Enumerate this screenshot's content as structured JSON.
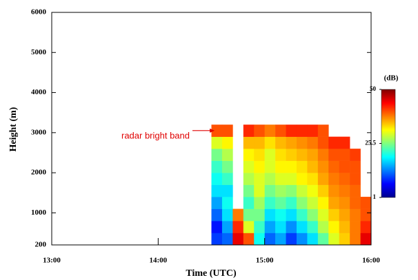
{
  "chart_data": {
    "type": "heatmap",
    "x_label": "Time (UTC)",
    "y_label": "Height (m)",
    "colorbar_label": "(dB)",
    "annotation": {
      "text": "radar bright band",
      "x": 14.53,
      "y": 3000
    },
    "xlim": [
      13,
      16
    ],
    "xticks": [
      {
        "value": 13,
        "label": "13:00"
      },
      {
        "value": 14,
        "label": "14:00"
      },
      {
        "value": 15,
        "label": "15:00"
      },
      {
        "value": 16,
        "label": "16:00"
      }
    ],
    "ylim": [
      200,
      6000
    ],
    "yticks": [
      200,
      1000,
      2000,
      3000,
      4000,
      5000,
      6000
    ],
    "zlim": [
      1,
      50
    ],
    "zticks": [
      1,
      25.5,
      50
    ],
    "x_bins": [
      14.5,
      14.6,
      14.7,
      14.8,
      14.9,
      15.0,
      15.1,
      15.2,
      15.3,
      15.4,
      15.5,
      15.6,
      15.7,
      15.8,
      15.9,
      16.0
    ],
    "y_bins": [
      200,
      500,
      800,
      1100,
      1400,
      1700,
      2000,
      2300,
      2600,
      2900,
      3200
    ],
    "values": [
      [
        10,
        12,
        45,
        40,
        20,
        12,
        15,
        10,
        14,
        18,
        24,
        30,
        34,
        38,
        45
      ],
      [
        8,
        15,
        42,
        30,
        22,
        15,
        18,
        14,
        18,
        22,
        28,
        32,
        35,
        38,
        42
      ],
      [
        12,
        18,
        38,
        25,
        25,
        18,
        20,
        18,
        22,
        26,
        30,
        34,
        36,
        38,
        40
      ],
      [
        15,
        20,
        null,
        22,
        27,
        22,
        24,
        22,
        26,
        29,
        32,
        36,
        37,
        39,
        40
      ],
      [
        18,
        18,
        null,
        25,
        30,
        25,
        27,
        26,
        29,
        31,
        34,
        37,
        38,
        39,
        null
      ],
      [
        20,
        22,
        null,
        28,
        30,
        28,
        30,
        30,
        32,
        33,
        36,
        38,
        39,
        40,
        null
      ],
      [
        22,
        25,
        null,
        30,
        32,
        30,
        32,
        32,
        33,
        35,
        37,
        39,
        40,
        40,
        null
      ],
      [
        25,
        28,
        null,
        32,
        33,
        30,
        33,
        34,
        35,
        36,
        38,
        40,
        40,
        41,
        null
      ],
      [
        30,
        32,
        null,
        35,
        35,
        33,
        35,
        36,
        37,
        38,
        40,
        42,
        42,
        null,
        null
      ],
      [
        40,
        40,
        null,
        42,
        40,
        38,
        40,
        42,
        42,
        42,
        40,
        null,
        null,
        null,
        null
      ]
    ]
  }
}
